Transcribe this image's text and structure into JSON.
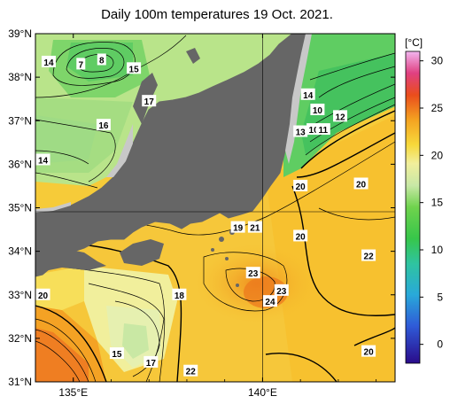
{
  "title": "Daily 100m temperatures 19 Oct. 2021.",
  "axes": {
    "lat_labels": [
      "39°N",
      "38°N",
      "37°N",
      "36°N",
      "35°N",
      "34°N",
      "33°N",
      "32°N",
      "31°N"
    ],
    "lon_labels": [
      "135°E",
      "140°E"
    ],
    "lon_range": [
      134,
      143.5
    ],
    "lat_range": [
      31,
      39
    ]
  },
  "colorbar": {
    "unit": "[°C]",
    "ticks": [
      "30",
      "25",
      "20",
      "15",
      "10",
      "5",
      "0"
    ],
    "range": [
      -2,
      31
    ]
  },
  "contour_labels": [
    {
      "text": "14",
      "lon": 134.35,
      "lat": 38.35
    },
    {
      "text": "7",
      "lon": 135.2,
      "lat": 38.3
    },
    {
      "text": "8",
      "lon": 135.75,
      "lat": 38.4
    },
    {
      "text": "15",
      "lon": 136.6,
      "lat": 38.2
    },
    {
      "text": "17",
      "lon": 137.0,
      "lat": 37.45
    },
    {
      "text": "16",
      "lon": 135.8,
      "lat": 36.9
    },
    {
      "text": "14",
      "lon": 134.2,
      "lat": 36.1
    },
    {
      "text": "14",
      "lon": 141.2,
      "lat": 37.6
    },
    {
      "text": "10",
      "lon": 141.45,
      "lat": 37.25
    },
    {
      "text": "12",
      "lon": 142.05,
      "lat": 37.1
    },
    {
      "text": "13",
      "lon": 141.0,
      "lat": 36.75
    },
    {
      "text": "10",
      "lon": 141.35,
      "lat": 36.8
    },
    {
      "text": "11",
      "lon": 141.6,
      "lat": 36.8
    },
    {
      "text": "20",
      "lon": 141.0,
      "lat": 35.5
    },
    {
      "text": "20",
      "lon": 142.6,
      "lat": 35.55
    },
    {
      "text": "19",
      "lon": 139.35,
      "lat": 34.55
    },
    {
      "text": "21",
      "lon": 139.8,
      "lat": 34.55
    },
    {
      "text": "20",
      "lon": 141.0,
      "lat": 34.35
    },
    {
      "text": "22",
      "lon": 142.8,
      "lat": 33.9
    },
    {
      "text": "23",
      "lon": 139.75,
      "lat": 33.5
    },
    {
      "text": "23",
      "lon": 140.5,
      "lat": 33.1
    },
    {
      "text": "24",
      "lon": 140.2,
      "lat": 32.85
    },
    {
      "text": "18",
      "lon": 137.8,
      "lat": 33.0
    },
    {
      "text": "20",
      "lon": 134.2,
      "lat": 33.0
    },
    {
      "text": "15",
      "lon": 136.15,
      "lat": 31.65
    },
    {
      "text": "17",
      "lon": 137.05,
      "lat": 31.45
    },
    {
      "text": "22",
      "lon": 138.1,
      "lat": 31.25
    },
    {
      "text": "20",
      "lon": 142.8,
      "lat": 31.7
    }
  ]
}
